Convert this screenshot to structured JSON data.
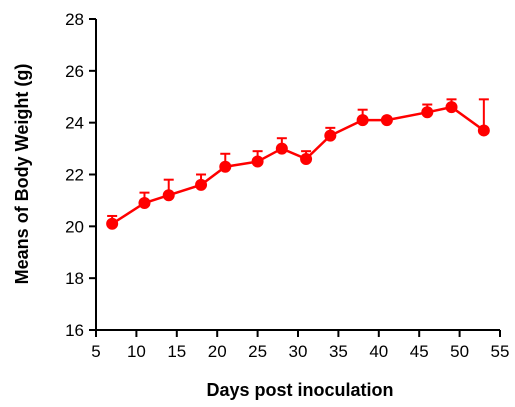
{
  "chart_data": {
    "type": "line",
    "xlabel": "Days post inoculation",
    "ylabel": "Means of Body Weight (g)",
    "xlim": [
      5,
      55
    ],
    "ylim": [
      16,
      28
    ],
    "xticks": [
      5,
      10,
      15,
      20,
      25,
      30,
      35,
      40,
      45,
      50,
      55
    ],
    "yticks": [
      16,
      18,
      20,
      22,
      24,
      26,
      28
    ],
    "grid": false,
    "color": "#ff0000",
    "series": [
      {
        "x": [
          7,
          11,
          14,
          18,
          21,
          25,
          28,
          31,
          34,
          38,
          41,
          46,
          49,
          53
        ],
        "y": [
          20.1,
          20.9,
          21.2,
          21.6,
          22.3,
          22.5,
          23.0,
          22.6,
          23.5,
          24.1,
          24.1,
          24.4,
          24.6,
          23.7
        ],
        "error_upper": [
          0.3,
          0.4,
          0.6,
          0.4,
          0.5,
          0.4,
          0.4,
          0.3,
          0.3,
          0.4,
          0.1,
          0.3,
          0.3,
          1.2
        ]
      }
    ]
  }
}
